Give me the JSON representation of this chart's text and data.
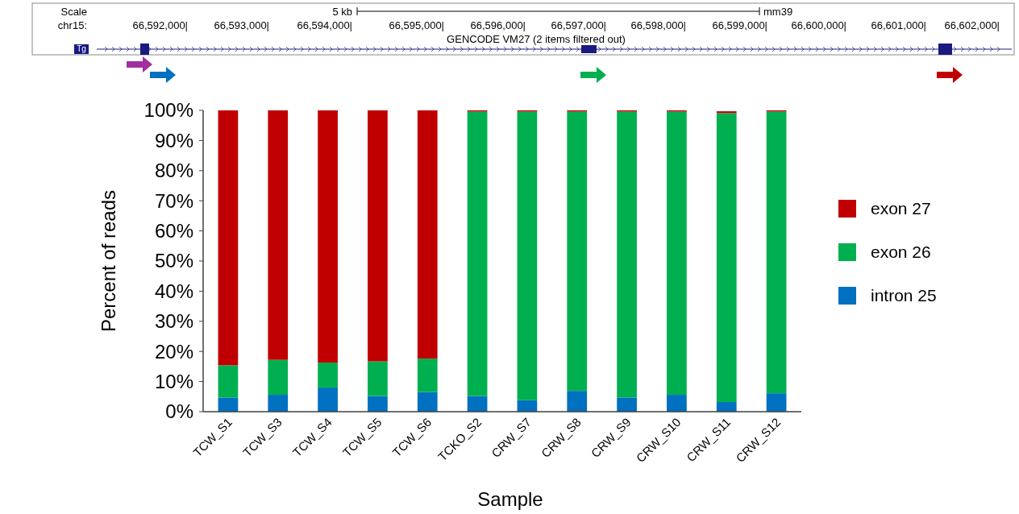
{
  "chart_data": {
    "type": "bar",
    "stacked": true,
    "xlabel": "Sample",
    "ylabel": "Percent of reads",
    "categories": [
      "TCW_S1",
      "TCW_S3",
      "TCW_S4",
      "TCW_S5",
      "TCW_S6",
      "TCKO_S2",
      "CRW_S7",
      "CRW_S8",
      "CRW_S9",
      "CRW_S10",
      "CRW_S11",
      "CRW_S12"
    ],
    "series": [
      {
        "name": "intron 25",
        "color": "#0070c0",
        "values": [
          4.7,
          5.6,
          8.0,
          5.2,
          6.5,
          5.2,
          3.8,
          6.9,
          4.7,
          5.6,
          3.2,
          6.1
        ]
      },
      {
        "name": "exon 26",
        "color": "#00b050",
        "values": [
          10.7,
          11.6,
          8.3,
          11.5,
          11.1,
          94.4,
          95.8,
          92.7,
          94.9,
          94.0,
          95.9,
          93.5
        ]
      },
      {
        "name": "exon 27",
        "color": "#c00000",
        "values": [
          84.6,
          82.8,
          83.7,
          83.3,
          82.4,
          0.4,
          0.4,
          0.4,
          0.4,
          0.4,
          0.6,
          0.4
        ]
      }
    ],
    "ylim": [
      0,
      100
    ],
    "yticks": [
      {
        "value": 0,
        "label": "0%"
      },
      {
        "value": 10,
        "label": "10%"
      },
      {
        "value": 20,
        "label": "20%"
      },
      {
        "value": 30,
        "label": "30%"
      },
      {
        "value": 40,
        "label": "40%"
      },
      {
        "value": 50,
        "label": "50%"
      },
      {
        "value": 60,
        "label": "60%"
      },
      {
        "value": 70,
        "label": "70%"
      },
      {
        "value": 80,
        "label": "80%"
      },
      {
        "value": 90,
        "label": "90%"
      },
      {
        "value": 100,
        "label": "100%"
      }
    ],
    "legend": "right",
    "annotations": [
      "Scale",
      "chr15:",
      "66,592,000|",
      "66,593,000|",
      "66,594,000|",
      "66,595,000|",
      "66,596,000|",
      "66,597,000|",
      "66,598,000|",
      "66,599,000|",
      "66,600,000|",
      "66,601,000|",
      "66,602,000|",
      "5 kb",
      "mm39",
      "GENCODE VM27 (2 items filtered out)",
      "Tg"
    ]
  }
}
